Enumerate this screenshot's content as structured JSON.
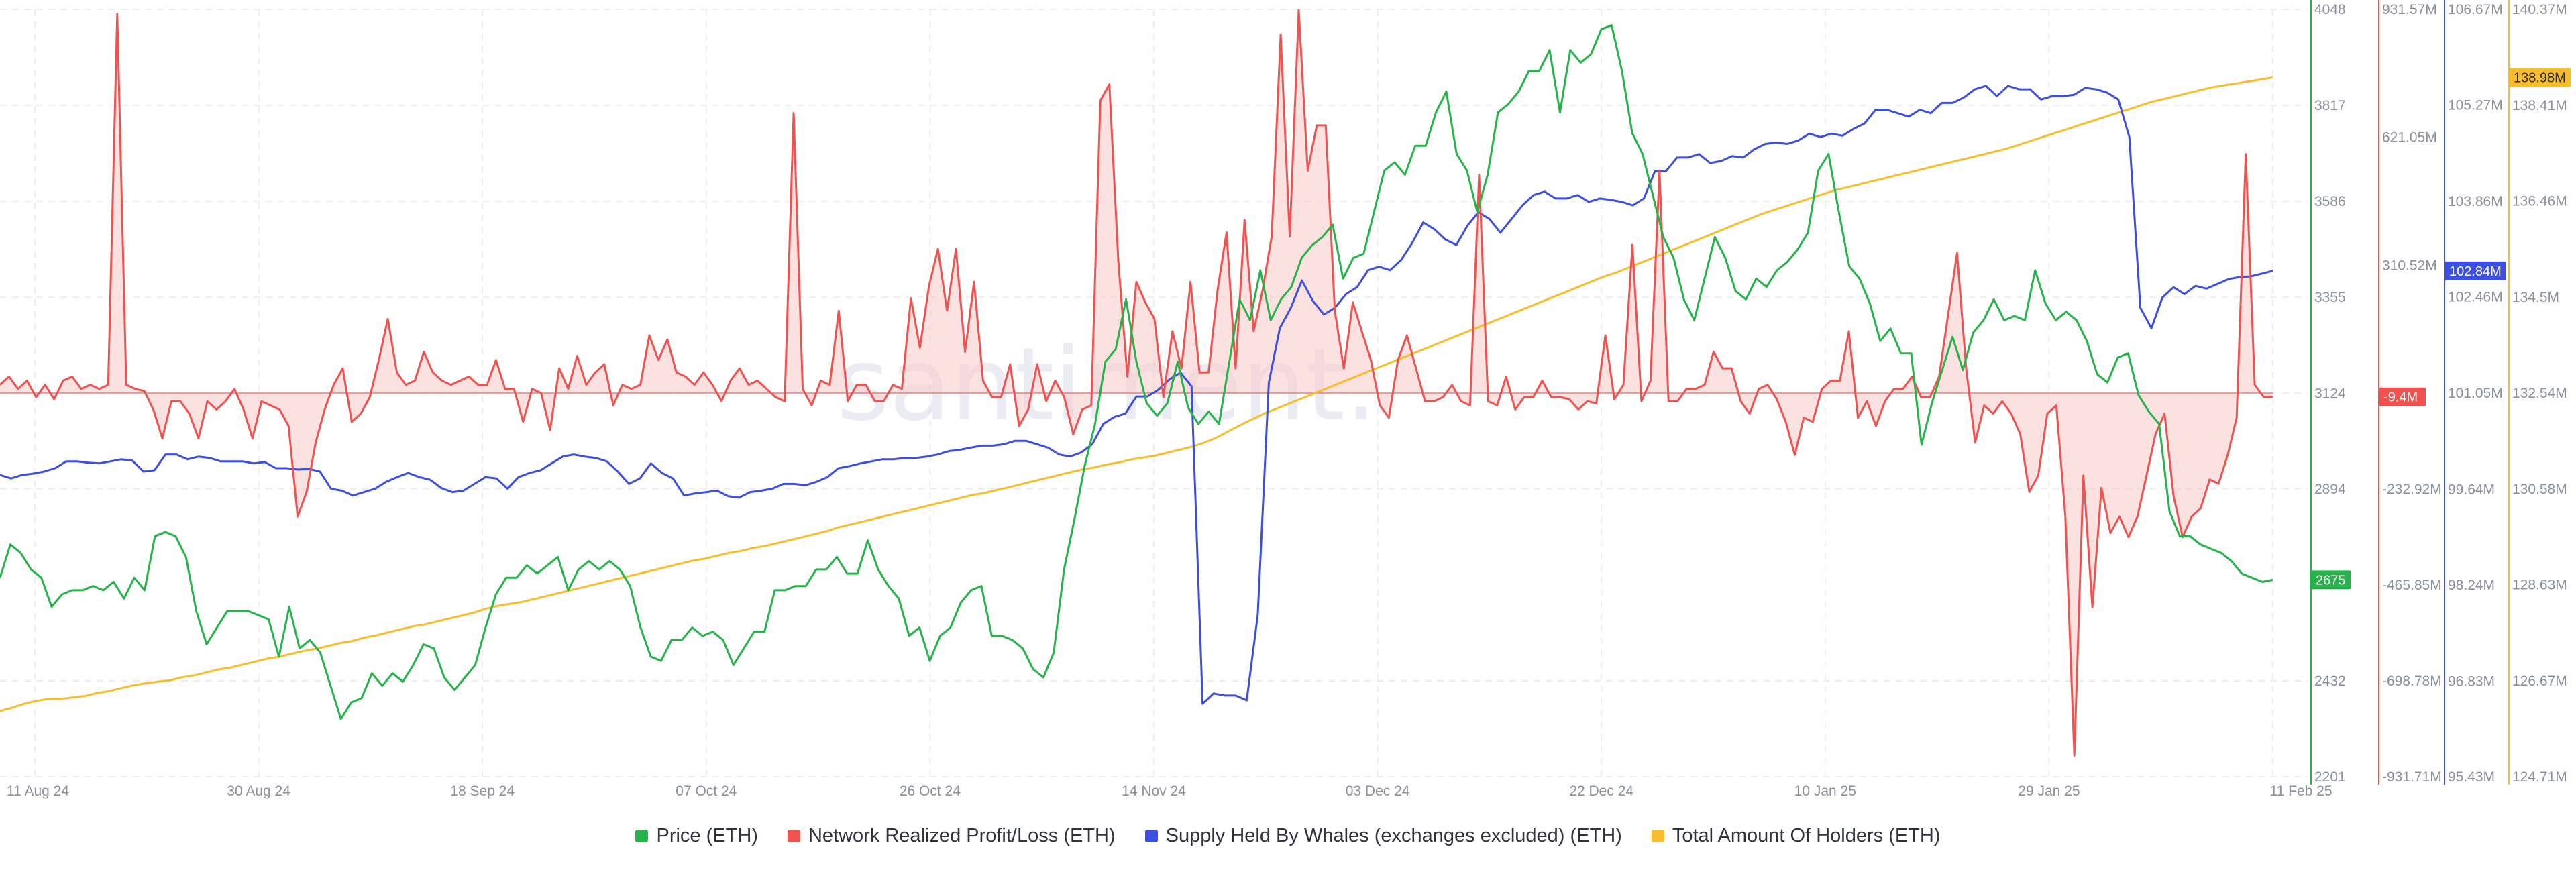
{
  "watermark": "santiment.",
  "chart_data": {
    "type": "line",
    "x_ticks": [
      "11 Aug 24",
      "30 Aug 24",
      "18 Sep 24",
      "07 Oct 24",
      "26 Oct 24",
      "14 Nov 24",
      "03 Dec 24",
      "22 Dec 24",
      "10 Jan 25",
      "29 Jan 25",
      "11 Feb 25"
    ],
    "x_range_days": [
      0,
      186
    ],
    "grid": true,
    "legend_position": "bottom-center",
    "axes": {
      "price": {
        "ticks": [
          "4048",
          "3817",
          "3586",
          "3355",
          "3124",
          "2894",
          "2432",
          "2201"
        ],
        "range": [
          2201,
          4048
        ],
        "color": "#26b34a"
      },
      "profit": {
        "ticks": [
          "931.57M",
          "621.05M",
          "310.52M",
          "-232.92M",
          "-465.85M",
          "-698.78M",
          "-931.71M"
        ],
        "range": [
          -931.71,
          931.57
        ],
        "color": "#ef5350"
      },
      "whales": {
        "ticks": [
          "106.67M",
          "105.27M",
          "103.86M",
          "102.46M",
          "101.05M",
          "99.64M",
          "98.24M",
          "96.83M",
          "95.43M"
        ],
        "range": [
          95.43,
          106.67
        ],
        "color": "#3d4fe0"
      },
      "holders": {
        "ticks": [
          "140.37M",
          "138.41M",
          "136.46M",
          "134.5M",
          "132.54M",
          "130.58M",
          "128.63M",
          "126.67M",
          "124.71M"
        ],
        "range": [
          124.71,
          140.37
        ],
        "color": "#f7bd2c"
      }
    },
    "badges": {
      "price": "2675",
      "profit": "-9.4M",
      "whales": "102.84M",
      "holders": "138.98M"
    },
    "series": [
      {
        "key": "price",
        "name": "Price (ETH)",
        "color": "#26b34a",
        "axis": "price",
        "values": [
          2680,
          2760,
          2740,
          2700,
          2680,
          2610,
          2640,
          2650,
          2650,
          2660,
          2650,
          2670,
          2630,
          2680,
          2650,
          2780,
          2790,
          2780,
          2730,
          2600,
          2520,
          2560,
          2600,
          2600,
          2600,
          2590,
          2580,
          2490,
          2610,
          2510,
          2530,
          2500,
          2420,
          2340,
          2380,
          2390,
          2450,
          2420,
          2450,
          2430,
          2470,
          2520,
          2510,
          2440,
          2410,
          2440,
          2470,
          2560,
          2640,
          2680,
          2680,
          2710,
          2690,
          2710,
          2730,
          2650,
          2700,
          2720,
          2700,
          2720,
          2700,
          2660,
          2560,
          2490,
          2480,
          2530,
          2530,
          2560,
          2540,
          2550,
          2530,
          2470,
          2510,
          2550,
          2550,
          2650,
          2650,
          2660,
          2660,
          2700,
          2700,
          2730,
          2690,
          2690,
          2770,
          2700,
          2660,
          2630,
          2540,
          2560,
          2480,
          2540,
          2560,
          2620,
          2650,
          2660,
          2540,
          2540,
          2530,
          2510,
          2460,
          2440,
          2500,
          2700,
          2820,
          2950,
          3050,
          3200,
          3230,
          3350,
          3200,
          3100,
          3070,
          3100,
          3200,
          3090,
          3050,
          3080,
          3050,
          3200,
          3350,
          3300,
          3420,
          3300,
          3350,
          3380,
          3450,
          3480,
          3500,
          3530,
          3400,
          3450,
          3460,
          3560,
          3660,
          3680,
          3650,
          3720,
          3720,
          3800,
          3850,
          3700,
          3660,
          3560,
          3650,
          3800,
          3820,
          3850,
          3900,
          3900,
          3950,
          3800,
          3950,
          3920,
          3940,
          4000,
          4010,
          3900,
          3750,
          3700,
          3600,
          3500,
          3450,
          3350,
          3300,
          3400,
          3500,
          3450,
          3370,
          3350,
          3400,
          3380,
          3420,
          3440,
          3470,
          3510,
          3660,
          3700,
          3560,
          3430,
          3400,
          3340,
          3250,
          3280,
          3220,
          3220,
          3000,
          3100,
          3180,
          3260,
          3180,
          3270,
          3300,
          3350,
          3300,
          3310,
          3300,
          3420,
          3340,
          3300,
          3320,
          3300,
          3250,
          3170,
          3150,
          3210,
          3220,
          3120,
          3080,
          3050,
          2840,
          2780,
          2780,
          2760,
          2750,
          2740,
          2720,
          2690,
          2680,
          2670,
          2675
        ]
      },
      {
        "key": "profit",
        "name": "Network Realized Profit/Loss (ETH)",
        "color": "#ef5350",
        "axis": "profit",
        "values": [
          20,
          40,
          10,
          30,
          -10,
          20,
          -15,
          30,
          40,
          10,
          20,
          10,
          20,
          920,
          20,
          10,
          5,
          -40,
          -110,
          -20,
          -20,
          -50,
          -110,
          -20,
          -40,
          -20,
          10,
          -40,
          -110,
          -20,
          -30,
          -40,
          -80,
          -300,
          -240,
          -120,
          -40,
          20,
          60,
          -70,
          -50,
          -10,
          80,
          180,
          50,
          20,
          30,
          100,
          50,
          30,
          20,
          30,
          40,
          20,
          20,
          80,
          10,
          10,
          -70,
          10,
          0,
          -90,
          60,
          10,
          90,
          20,
          50,
          70,
          -30,
          20,
          10,
          20,
          140,
          80,
          130,
          50,
          40,
          20,
          50,
          20,
          -20,
          30,
          60,
          20,
          30,
          10,
          -10,
          -20,
          680,
          10,
          -30,
          30,
          20,
          200,
          -20,
          20,
          20,
          -20,
          -20,
          20,
          10,
          230,
          110,
          260,
          350,
          200,
          350,
          100,
          270,
          30,
          -10,
          -10,
          70,
          -80,
          -40,
          70,
          -20,
          30,
          -10,
          -100,
          -40,
          -30,
          710,
          750,
          320,
          40,
          270,
          220,
          180,
          -10,
          150,
          60,
          270,
          50,
          50,
          250,
          390,
          60,
          420,
          150,
          250,
          380,
          870,
          380,
          930,
          540,
          650,
          650,
          200,
          60,
          220,
          150,
          80,
          -30,
          -60,
          80,
          140,
          60,
          -20,
          -20,
          -10,
          20,
          -20,
          -30,
          530,
          -20,
          -30,
          40,
          -40,
          -10,
          -10,
          30,
          -10,
          -10,
          -15,
          -40,
          -20,
          -25,
          140,
          -15,
          20,
          360,
          -20,
          30,
          540,
          -20,
          -20,
          10,
          10,
          20,
          100,
          60,
          60,
          -20,
          -50,
          10,
          20,
          -15,
          -70,
          -150,
          -60,
          -70,
          10,
          30,
          30,
          150,
          -60,
          -20,
          -80,
          -20,
          10,
          10,
          40,
          -10,
          -10,
          40,
          190,
          340,
          60,
          -120,
          -30,
          -50,
          -20,
          -50,
          -100,
          -240,
          -200,
          -50,
          -30,
          -300,
          -880,
          -200,
          -520,
          -230,
          -340,
          -300,
          -350,
          -300,
          -200,
          -100,
          -50,
          -250,
          -350,
          -300,
          -280,
          -210,
          -220,
          -150,
          -60,
          580,
          20,
          -10,
          -9.4
        ]
      },
      {
        "key": "whales",
        "name": "Supply Held By Whales (exchanges excluded) (ETH)",
        "color": "#3d4fe0",
        "axis": "whales",
        "values": [
          99.85,
          99.8,
          99.85,
          99.87,
          99.9,
          99.95,
          100.05,
          100.05,
          100.03,
          100.02,
          100.05,
          100.08,
          100.06,
          99.9,
          99.92,
          100.15,
          100.15,
          100.08,
          100.12,
          100.1,
          100.05,
          100.05,
          100.05,
          100.02,
          100.04,
          99.95,
          99.95,
          99.93,
          99.94,
          99.9,
          99.65,
          99.62,
          99.55,
          99.6,
          99.65,
          99.75,
          99.82,
          99.88,
          99.82,
          99.78,
          99.66,
          99.6,
          99.62,
          99.72,
          99.82,
          99.8,
          99.65,
          99.82,
          99.88,
          99.92,
          100.02,
          100.12,
          100.15,
          100.12,
          100.1,
          100.05,
          99.9,
          99.72,
          99.8,
          100.02,
          99.88,
          99.8,
          99.55,
          99.58,
          99.6,
          99.62,
          99.54,
          99.52,
          99.6,
          99.62,
          99.65,
          99.72,
          99.72,
          99.7,
          99.75,
          99.82,
          99.95,
          99.98,
          100.02,
          100.05,
          100.08,
          100.08,
          100.1,
          100.1,
          100.12,
          100.15,
          100.2,
          100.22,
          100.25,
          100.28,
          100.28,
          100.3,
          100.35,
          100.35,
          100.3,
          100.25,
          100.15,
          100.12,
          100.18,
          100.3,
          100.6,
          100.7,
          100.75,
          101.0,
          101.0,
          101.1,
          101.25,
          101.35,
          101.15,
          96.5,
          96.65,
          96.62,
          96.62,
          96.55,
          97.8,
          101.2,
          102.0,
          102.3,
          102.7,
          102.4,
          102.2,
          102.3,
          102.5,
          102.6,
          102.85,
          102.9,
          102.85,
          103.0,
          103.25,
          103.55,
          103.45,
          103.3,
          103.22,
          103.5,
          103.7,
          103.6,
          103.4,
          103.6,
          103.8,
          103.95,
          104.0,
          103.9,
          103.9,
          103.95,
          103.85,
          103.9,
          103.88,
          103.85,
          103.8,
          103.9,
          104.3,
          104.3,
          104.5,
          104.5,
          104.55,
          104.42,
          104.45,
          104.52,
          104.5,
          104.62,
          104.7,
          104.72,
          104.7,
          104.75,
          104.85,
          104.8,
          104.85,
          104.82,
          104.92,
          105.0,
          105.2,
          105.2,
          105.15,
          105.1,
          105.2,
          105.15,
          105.3,
          105.3,
          105.38,
          105.5,
          105.55,
          105.4,
          105.55,
          105.5,
          105.5,
          105.35,
          105.4,
          105.4,
          105.42,
          105.52,
          105.5,
          105.45,
          105.35,
          104.8,
          102.3,
          102.0,
          102.45,
          102.6,
          102.5,
          102.62,
          102.58,
          102.65,
          102.72,
          102.75,
          102.76,
          102.8,
          102.84
        ]
      },
      {
        "key": "holders",
        "name": "Total Amount Of Holders (ETH)",
        "color": "#f7bd2c",
        "axis": "holders",
        "values": [
          126.05,
          126.12,
          126.2,
          126.26,
          126.3,
          126.3,
          126.33,
          126.36,
          126.42,
          126.46,
          126.52,
          126.58,
          126.62,
          126.65,
          126.68,
          126.74,
          126.78,
          126.84,
          126.9,
          126.94,
          127.0,
          127.06,
          127.12,
          127.16,
          127.22,
          127.28,
          127.32,
          127.38,
          127.44,
          127.48,
          127.55,
          127.6,
          127.66,
          127.72,
          127.78,
          127.82,
          127.88,
          127.94,
          128.0,
          128.06,
          128.14,
          128.2,
          128.24,
          128.28,
          128.34,
          128.4,
          128.46,
          128.52,
          128.58,
          128.64,
          128.7,
          128.76,
          128.82,
          128.88,
          128.94,
          129.0,
          129.06,
          129.12,
          129.16,
          129.22,
          129.28,
          129.32,
          129.38,
          129.42,
          129.48,
          129.54,
          129.6,
          129.66,
          129.72,
          129.8,
          129.86,
          129.92,
          129.98,
          130.04,
          130.1,
          130.16,
          130.22,
          130.28,
          130.34,
          130.4,
          130.46,
          130.5,
          130.56,
          130.62,
          130.68,
          130.74,
          130.8,
          130.86,
          130.92,
          130.98,
          131.02,
          131.08,
          131.12,
          131.18,
          131.22,
          131.26,
          131.32,
          131.38,
          131.44,
          131.52,
          131.62,
          131.75,
          131.88,
          132.0,
          132.12,
          132.22,
          132.32,
          132.42,
          132.52,
          132.62,
          132.72,
          132.82,
          132.92,
          133.02,
          133.12,
          133.22,
          133.32,
          133.42,
          133.52,
          133.62,
          133.72,
          133.82,
          133.92,
          134.02,
          134.12,
          134.22,
          134.32,
          134.42,
          134.52,
          134.62,
          134.72,
          134.82,
          134.92,
          135.0,
          135.1,
          135.2,
          135.3,
          135.4,
          135.5,
          135.6,
          135.7,
          135.8,
          135.9,
          136.0,
          136.1,
          136.2,
          136.28,
          136.36,
          136.44,
          136.52,
          136.6,
          136.68,
          136.74,
          136.8,
          136.86,
          136.92,
          136.98,
          137.04,
          137.1,
          137.16,
          137.22,
          137.28,
          137.34,
          137.4,
          137.46,
          137.52,
          137.6,
          137.68,
          137.76,
          137.84,
          137.92,
          138.0,
          138.08,
          138.16,
          138.24,
          138.32,
          138.4,
          138.48,
          138.54,
          138.6,
          138.66,
          138.72,
          138.78,
          138.82,
          138.86,
          138.9,
          138.94,
          138.98
        ]
      }
    ]
  }
}
